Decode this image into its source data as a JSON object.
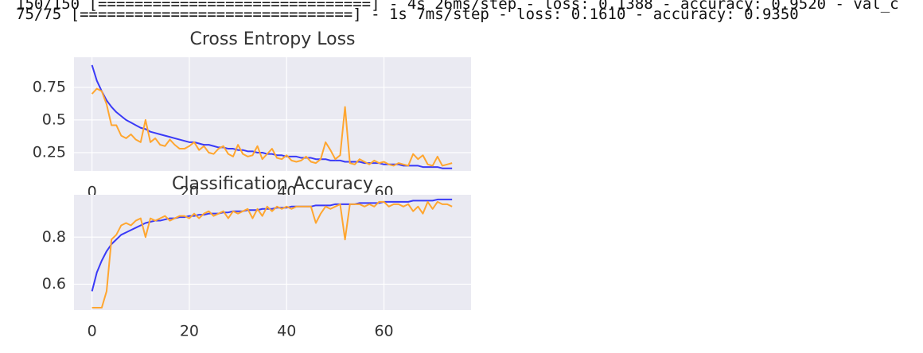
{
  "console_output": [
    "150/150 [==============================] - 4s 26ms/step - loss: 0.1388 - accuracy: 0.9520 - val_c",
    "75/75 [==============================] - 1s 7ms/step - loss: 0.1610 - accuracy: 0.9350"
  ],
  "chart_data": [
    {
      "type": "line",
      "title": "Cross Entropy Loss",
      "grid": true,
      "background": "#eaeaf2",
      "xlim": [
        -3.7,
        77.9
      ],
      "ylim": [
        0.11,
        0.98
      ],
      "xticks": [
        0,
        20,
        40,
        60
      ],
      "yticks": [
        0.25,
        0.5,
        0.75
      ],
      "x": [
        0,
        1,
        2,
        3,
        4,
        5,
        6,
        7,
        8,
        9,
        10,
        11,
        12,
        13,
        14,
        15,
        16,
        17,
        18,
        19,
        20,
        21,
        22,
        23,
        24,
        25,
        26,
        27,
        28,
        29,
        30,
        31,
        32,
        33,
        34,
        35,
        36,
        37,
        38,
        39,
        40,
        41,
        42,
        43,
        44,
        45,
        46,
        47,
        48,
        49,
        50,
        51,
        52,
        53,
        54,
        55,
        56,
        57,
        58,
        59,
        60,
        61,
        62,
        63,
        64,
        65,
        66,
        67,
        68,
        69,
        70,
        71,
        72,
        73,
        74
      ],
      "series": [
        {
          "color": "#3a3af7",
          "values": [
            0.92,
            0.8,
            0.72,
            0.65,
            0.6,
            0.56,
            0.53,
            0.5,
            0.48,
            0.46,
            0.44,
            0.43,
            0.41,
            0.4,
            0.39,
            0.38,
            0.37,
            0.36,
            0.35,
            0.34,
            0.33,
            0.33,
            0.32,
            0.31,
            0.31,
            0.3,
            0.29,
            0.29,
            0.28,
            0.28,
            0.27,
            0.27,
            0.26,
            0.26,
            0.25,
            0.25,
            0.24,
            0.24,
            0.23,
            0.23,
            0.22,
            0.22,
            0.22,
            0.21,
            0.21,
            0.21,
            0.2,
            0.2,
            0.2,
            0.19,
            0.19,
            0.19,
            0.18,
            0.18,
            0.18,
            0.18,
            0.17,
            0.17,
            0.17,
            0.17,
            0.16,
            0.16,
            0.16,
            0.16,
            0.15,
            0.15,
            0.15,
            0.15,
            0.14,
            0.14,
            0.14,
            0.14,
            0.13,
            0.13,
            0.13
          ]
        },
        {
          "color": "#ffa630",
          "values": [
            0.7,
            0.74,
            0.72,
            0.62,
            0.46,
            0.46,
            0.38,
            0.36,
            0.39,
            0.35,
            0.33,
            0.5,
            0.33,
            0.36,
            0.31,
            0.3,
            0.35,
            0.31,
            0.28,
            0.28,
            0.3,
            0.33,
            0.27,
            0.3,
            0.25,
            0.24,
            0.28,
            0.3,
            0.24,
            0.22,
            0.31,
            0.24,
            0.22,
            0.23,
            0.3,
            0.2,
            0.24,
            0.28,
            0.21,
            0.2,
            0.23,
            0.19,
            0.18,
            0.19,
            0.22,
            0.18,
            0.17,
            0.2,
            0.33,
            0.27,
            0.2,
            0.23,
            0.6,
            0.17,
            0.16,
            0.2,
            0.18,
            0.16,
            0.19,
            0.17,
            0.18,
            0.16,
            0.15,
            0.17,
            0.16,
            0.15,
            0.24,
            0.2,
            0.23,
            0.16,
            0.15,
            0.22,
            0.15,
            0.16,
            0.17
          ]
        }
      ]
    },
    {
      "type": "line",
      "title": "Classification Accuracy",
      "grid": true,
      "background": "#eaeaf2",
      "xlim": [
        -3.7,
        77.9
      ],
      "ylim": [
        0.49,
        0.98
      ],
      "xticks": [
        0,
        20,
        40,
        60
      ],
      "yticks": [
        0.6,
        0.8
      ],
      "x": [
        0,
        1,
        2,
        3,
        4,
        5,
        6,
        7,
        8,
        9,
        10,
        11,
        12,
        13,
        14,
        15,
        16,
        17,
        18,
        19,
        20,
        21,
        22,
        23,
        24,
        25,
        26,
        27,
        28,
        29,
        30,
        31,
        32,
        33,
        34,
        35,
        36,
        37,
        38,
        39,
        40,
        41,
        42,
        43,
        44,
        45,
        46,
        47,
        48,
        49,
        50,
        51,
        52,
        53,
        54,
        55,
        56,
        57,
        58,
        59,
        60,
        61,
        62,
        63,
        64,
        65,
        66,
        67,
        68,
        69,
        70,
        71,
        72,
        73,
        74
      ],
      "series": [
        {
          "color": "#3a3af7",
          "values": [
            0.57,
            0.65,
            0.7,
            0.74,
            0.77,
            0.79,
            0.81,
            0.82,
            0.83,
            0.84,
            0.85,
            0.86,
            0.865,
            0.87,
            0.87,
            0.875,
            0.88,
            0.88,
            0.885,
            0.885,
            0.89,
            0.89,
            0.895,
            0.895,
            0.9,
            0.9,
            0.9,
            0.905,
            0.905,
            0.91,
            0.91,
            0.91,
            0.915,
            0.915,
            0.915,
            0.92,
            0.92,
            0.92,
            0.925,
            0.925,
            0.925,
            0.93,
            0.93,
            0.93,
            0.93,
            0.93,
            0.935,
            0.935,
            0.935,
            0.935,
            0.94,
            0.94,
            0.94,
            0.94,
            0.94,
            0.945,
            0.945,
            0.945,
            0.945,
            0.945,
            0.95,
            0.95,
            0.95,
            0.95,
            0.95,
            0.95,
            0.955,
            0.955,
            0.955,
            0.955,
            0.955,
            0.96,
            0.96,
            0.96,
            0.96
          ]
        },
        {
          "color": "#ffa630",
          "values": [
            0.5,
            0.5,
            0.5,
            0.57,
            0.79,
            0.81,
            0.85,
            0.86,
            0.85,
            0.87,
            0.88,
            0.8,
            0.88,
            0.87,
            0.88,
            0.89,
            0.87,
            0.88,
            0.89,
            0.89,
            0.88,
            0.9,
            0.88,
            0.9,
            0.91,
            0.89,
            0.9,
            0.91,
            0.88,
            0.91,
            0.9,
            0.91,
            0.92,
            0.88,
            0.92,
            0.89,
            0.93,
            0.91,
            0.93,
            0.92,
            0.93,
            0.92,
            0.93,
            0.93,
            0.93,
            0.93,
            0.86,
            0.9,
            0.93,
            0.92,
            0.93,
            0.94,
            0.79,
            0.94,
            0.94,
            0.94,
            0.93,
            0.94,
            0.93,
            0.95,
            0.95,
            0.93,
            0.94,
            0.94,
            0.93,
            0.94,
            0.91,
            0.93,
            0.9,
            0.95,
            0.92,
            0.95,
            0.94,
            0.94,
            0.93
          ]
        }
      ]
    }
  ]
}
